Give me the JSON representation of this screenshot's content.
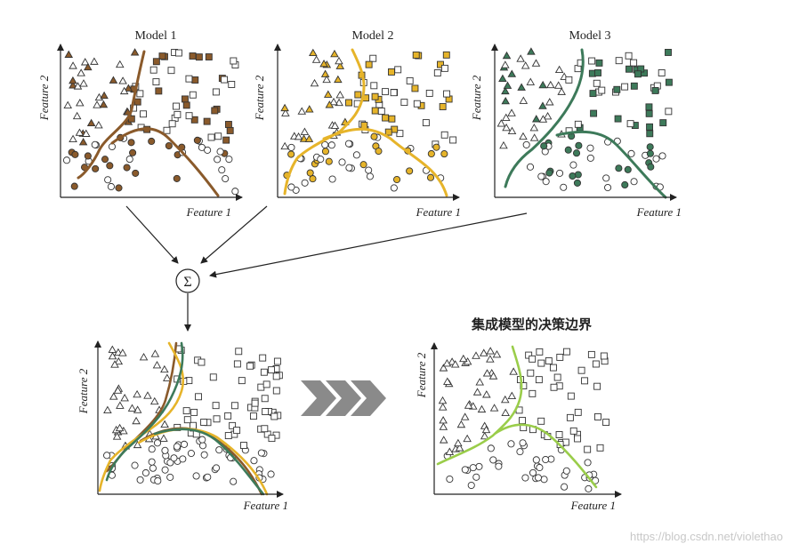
{
  "colors": {
    "brown": "#8a5a2b",
    "gold": "#e6b42a",
    "green": "#3d7a5a",
    "lightgreen": "#9acd4a",
    "arrows": "#999999",
    "ink": "#222222"
  },
  "models": [
    {
      "title": "Model 1",
      "color_key": "brown"
    },
    {
      "title": "Model 2",
      "color_key": "gold"
    },
    {
      "title": "Model 3",
      "color_key": "green"
    }
  ],
  "axis": {
    "x_label": "Feature 1",
    "y_label": "Feature 2"
  },
  "sum_symbol": "Σ",
  "ensemble_title": "集成模型的决策边界",
  "watermark": "https://blog.csdn.net/violethao"
}
